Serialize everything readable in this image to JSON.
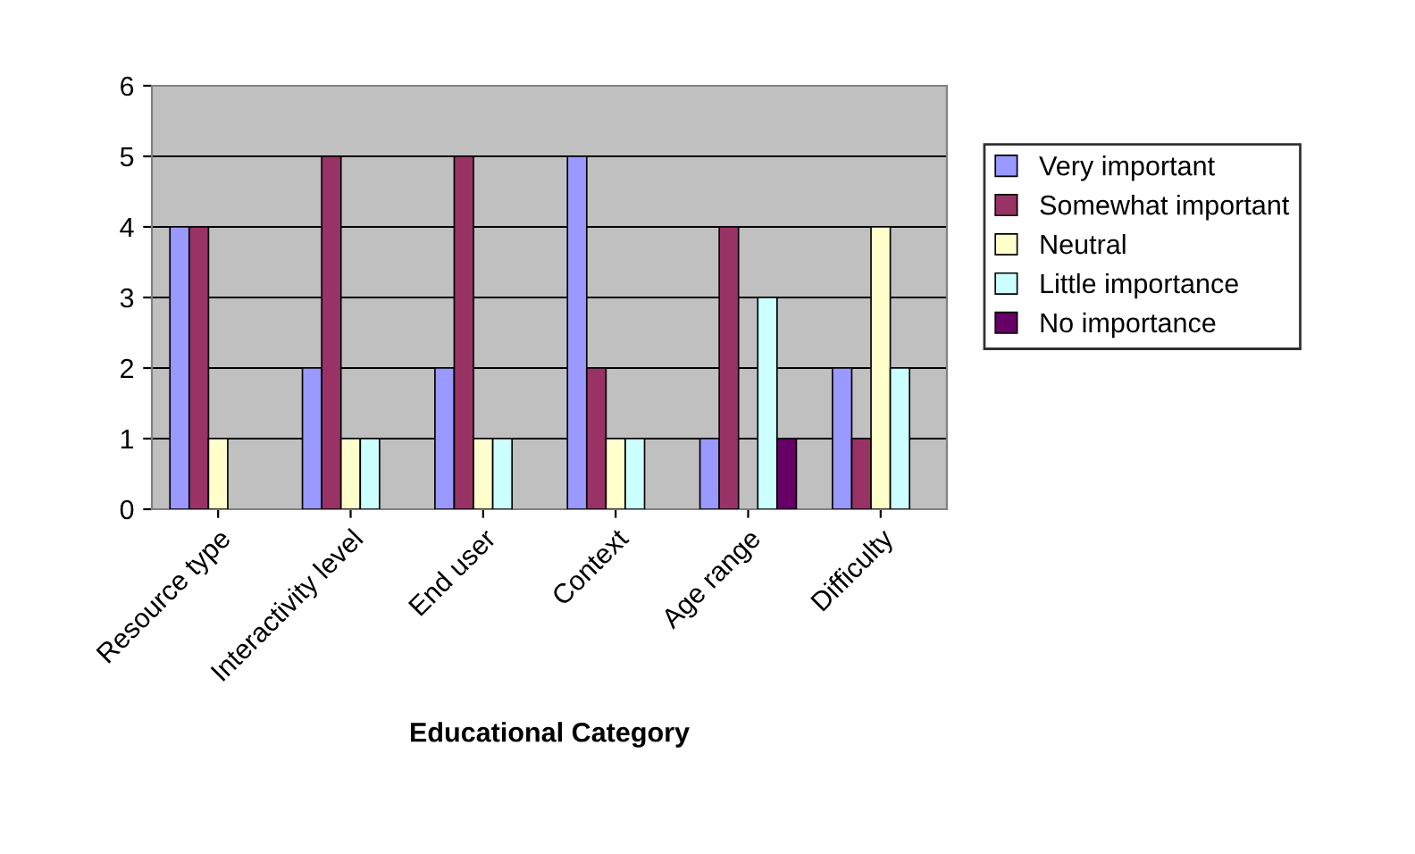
{
  "chart_data": {
    "type": "bar",
    "xlabel": "Educational Category",
    "categories": [
      "Resource type",
      "Interactivity level",
      "End user",
      "Context",
      "Age range",
      "Difficulty"
    ],
    "series": [
      {
        "name": "Very important",
        "color": "#9999ff",
        "values": [
          4,
          2,
          2,
          5,
          1,
          2
        ]
      },
      {
        "name": "Somewhat important",
        "color": "#993366",
        "values": [
          4,
          5,
          5,
          2,
          4,
          1
        ]
      },
      {
        "name": "Neutral",
        "color": "#ffffcc",
        "values": [
          1,
          1,
          1,
          1,
          null,
          4
        ]
      },
      {
        "name": "Little importance",
        "color": "#ccffff",
        "values": [
          null,
          1,
          1,
          1,
          3,
          2
        ]
      },
      {
        "name": "No importance",
        "color": "#660066",
        "values": [
          null,
          null,
          null,
          null,
          1,
          null
        ]
      }
    ],
    "ylim": [
      0,
      6
    ],
    "yticks": [
      0,
      1,
      2,
      3,
      4,
      5,
      6
    ],
    "grid": "y",
    "legend": "right"
  }
}
